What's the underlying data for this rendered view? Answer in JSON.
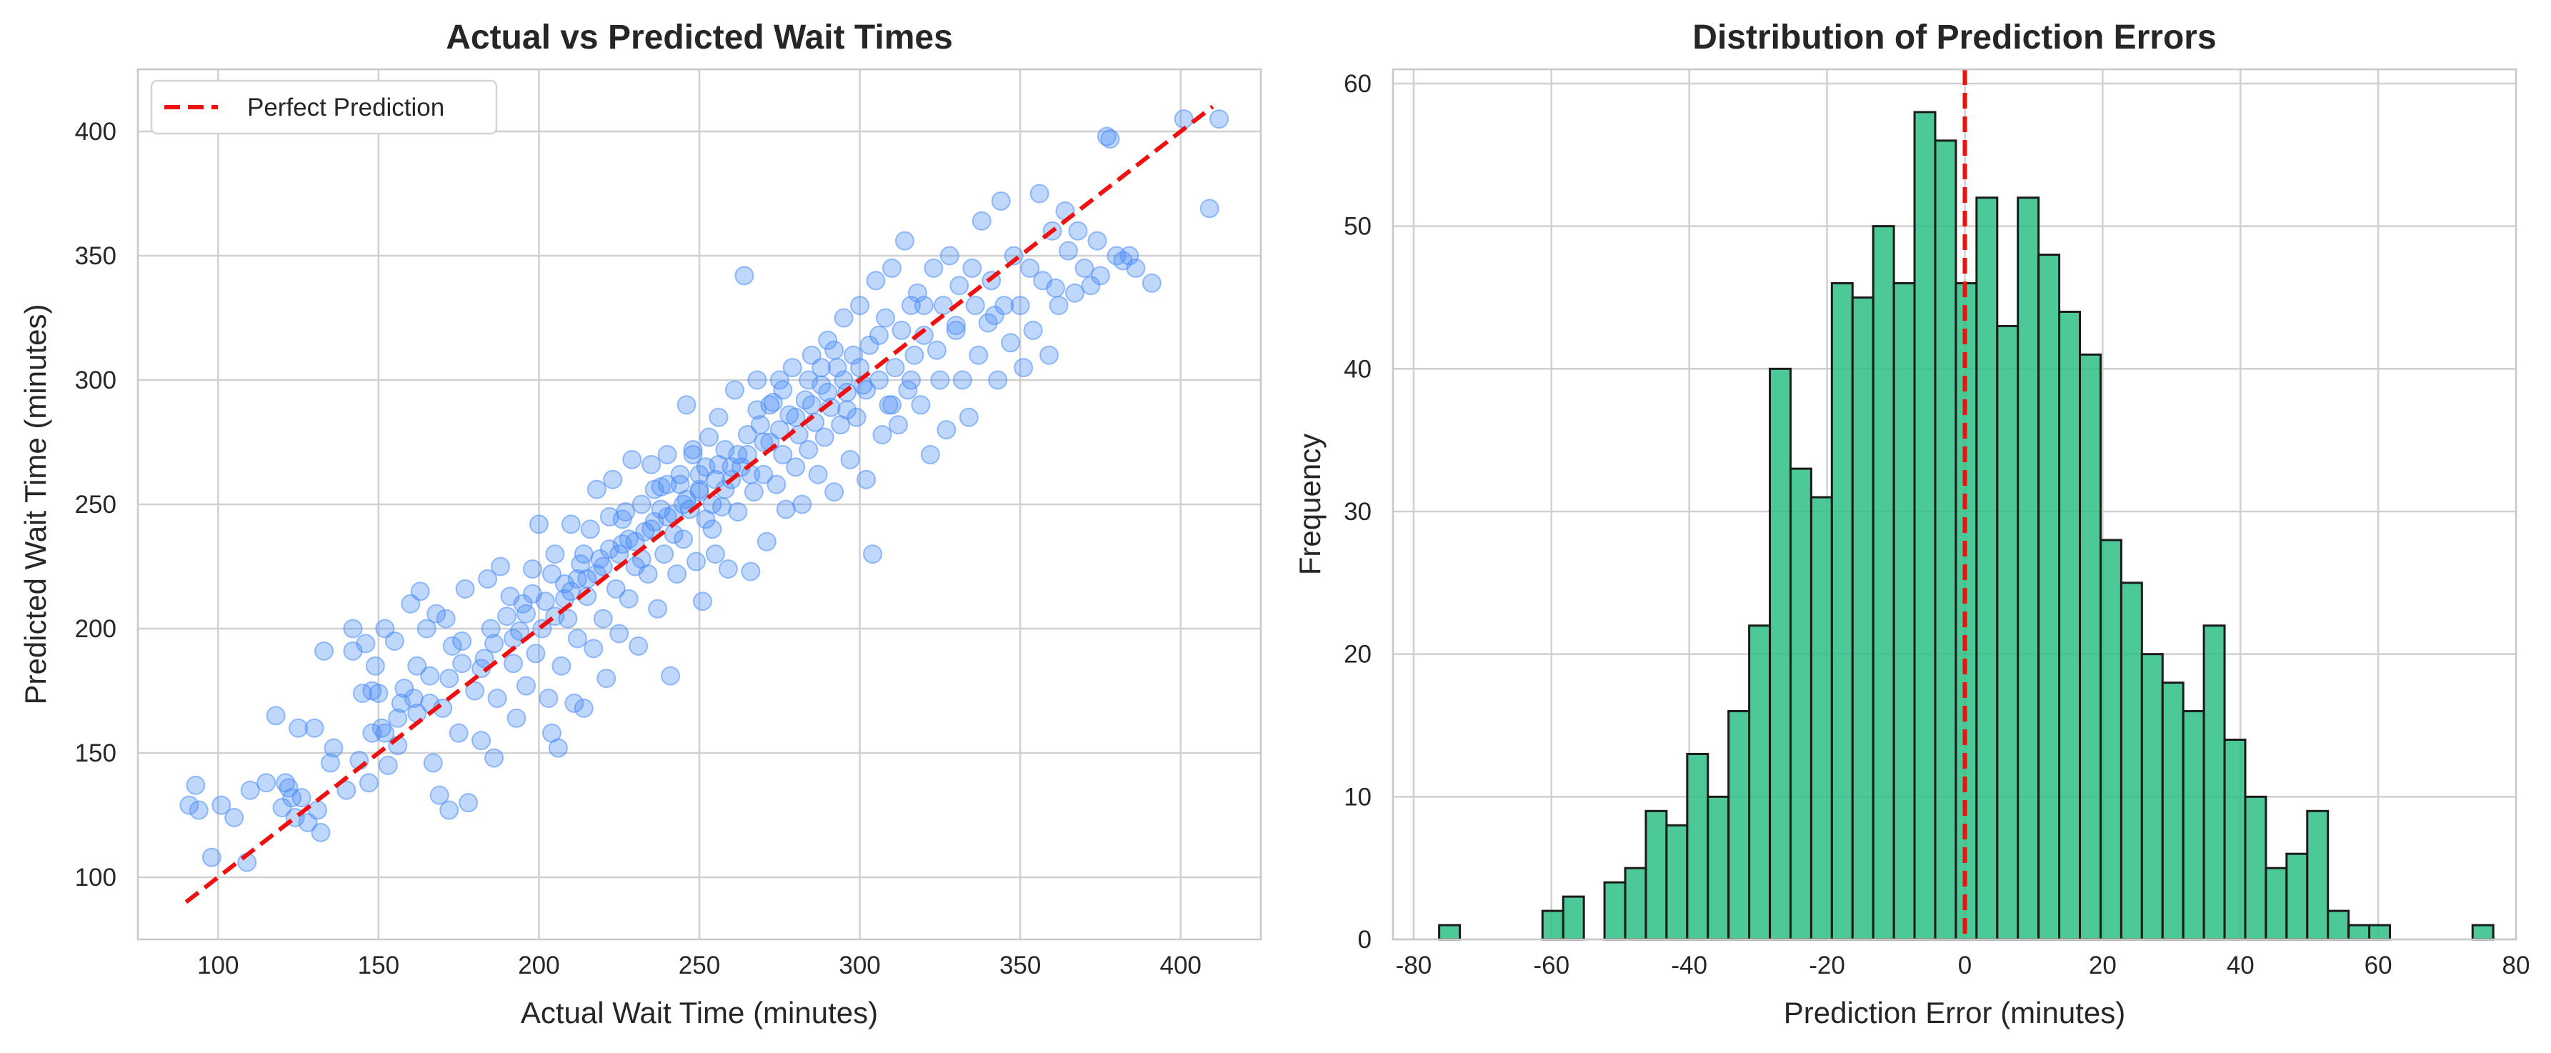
{
  "colors": {
    "scatter": "#4a8cf7",
    "hist_fill": "#2dbf85",
    "hist_edge": "#1b1b1b",
    "reference_line": "#ee1111",
    "grid": "#d0d0d0",
    "spine": "#c8c8c8"
  },
  "chart_data": [
    {
      "type": "scatter",
      "title": "Actual vs Predicted Wait Times",
      "xlabel": "Actual Wait Time (minutes)",
      "ylabel": "Predicted Wait Time (minutes)",
      "xlim": [
        75,
        425
      ],
      "ylim": [
        75,
        425
      ],
      "xticks": [
        100,
        150,
        200,
        250,
        300,
        350,
        400
      ],
      "yticks": [
        100,
        150,
        200,
        250,
        300,
        350,
        400
      ],
      "grid": true,
      "legend_position": "top-left",
      "reference_line": {
        "name": "Perfect Prediction",
        "x": [
          90,
          410
        ],
        "y": [
          90,
          410
        ],
        "style": "dashed"
      },
      "points": [
        [
          91,
          129
        ],
        [
          93,
          137
        ],
        [
          94,
          127
        ],
        [
          98,
          108
        ],
        [
          101,
          129
        ],
        [
          105,
          124
        ],
        [
          109,
          106
        ],
        [
          110,
          135
        ],
        [
          115,
          138
        ],
        [
          118,
          165
        ],
        [
          120,
          128
        ],
        [
          121,
          138
        ],
        [
          122,
          136
        ],
        [
          123,
          132
        ],
        [
          124,
          124
        ],
        [
          125,
          160
        ],
        [
          126,
          132
        ],
        [
          128,
          122
        ],
        [
          130,
          160
        ],
        [
          131,
          127
        ],
        [
          132,
          118
        ],
        [
          133,
          191
        ],
        [
          135,
          146
        ],
        [
          136,
          152
        ],
        [
          140,
          135
        ],
        [
          142,
          191
        ],
        [
          142,
          200
        ],
        [
          144,
          147
        ],
        [
          145,
          174
        ],
        [
          146,
          194
        ],
        [
          147,
          138
        ],
        [
          148,
          158
        ],
        [
          148,
          175
        ],
        [
          149,
          185
        ],
        [
          150,
          174
        ],
        [
          151,
          160
        ],
        [
          152,
          200
        ],
        [
          153,
          145
        ],
        [
          155,
          195
        ],
        [
          156,
          153
        ],
        [
          157,
          170
        ],
        [
          158,
          176
        ],
        [
          160,
          210
        ],
        [
          161,
          172
        ],
        [
          162,
          185
        ],
        [
          163,
          215
        ],
        [
          165,
          200
        ],
        [
          166,
          181
        ],
        [
          167,
          146
        ],
        [
          168,
          206
        ],
        [
          169,
          133
        ],
        [
          170,
          168
        ],
        [
          171,
          204
        ],
        [
          172,
          127
        ],
        [
          173,
          193
        ],
        [
          175,
          158
        ],
        [
          176,
          195
        ],
        [
          177,
          216
        ],
        [
          178,
          130
        ],
        [
          180,
          175
        ],
        [
          182,
          155
        ],
        [
          183,
          188
        ],
        [
          184,
          220
        ],
        [
          185,
          200
        ],
        [
          186,
          148
        ],
        [
          187,
          172
        ],
        [
          188,
          225
        ],
        [
          190,
          205
        ],
        [
          191,
          213
        ],
        [
          192,
          186
        ],
        [
          193,
          164
        ],
        [
          194,
          199
        ],
        [
          195,
          210
        ],
        [
          196,
          177
        ],
        [
          198,
          224
        ],
        [
          199,
          190
        ],
        [
          200,
          242
        ],
        [
          201,
          200
        ],
        [
          202,
          211
        ],
        [
          203,
          172
        ],
        [
          204,
          158
        ],
        [
          205,
          230
        ],
        [
          206,
          152
        ],
        [
          207,
          185
        ],
        [
          208,
          218
        ],
        [
          209,
          204
        ],
        [
          210,
          242
        ],
        [
          211,
          170
        ],
        [
          212,
          196
        ],
        [
          213,
          226
        ],
        [
          214,
          168
        ],
        [
          215,
          213
        ],
        [
          216,
          240
        ],
        [
          217,
          192
        ],
        [
          218,
          256
        ],
        [
          219,
          228
        ],
        [
          220,
          204
        ],
        [
          221,
          180
        ],
        [
          222,
          245
        ],
        [
          223,
          260
        ],
        [
          224,
          216
        ],
        [
          225,
          198
        ],
        [
          226,
          234
        ],
        [
          227,
          247
        ],
        [
          228,
          212
        ],
        [
          229,
          268
        ],
        [
          230,
          225
        ],
        [
          231,
          193
        ],
        [
          232,
          250
        ],
        [
          233,
          239
        ],
        [
          234,
          222
        ],
        [
          235,
          266
        ],
        [
          236,
          243
        ],
        [
          237,
          208
        ],
        [
          238,
          257
        ],
        [
          239,
          230
        ],
        [
          240,
          270
        ],
        [
          241,
          181
        ],
        [
          242,
          246
        ],
        [
          243,
          222
        ],
        [
          244,
          258
        ],
        [
          245,
          236
        ],
        [
          246,
          290
        ],
        [
          247,
          248
        ],
        [
          248,
          270
        ],
        [
          249,
          227
        ],
        [
          250,
          256
        ],
        [
          251,
          211
        ],
        [
          252,
          265
        ],
        [
          253,
          277
        ],
        [
          254,
          240
        ],
        [
          255,
          230
        ],
        [
          256,
          285
        ],
        [
          257,
          249
        ],
        [
          258,
          272
        ],
        [
          259,
          224
        ],
        [
          260,
          260
        ],
        [
          261,
          296
        ],
        [
          262,
          247
        ],
        [
          263,
          265
        ],
        [
          264,
          342
        ],
        [
          265,
          278
        ],
        [
          266,
          223
        ],
        [
          267,
          255
        ],
        [
          268,
          300
        ],
        [
          269,
          282
        ],
        [
          270,
          262
        ],
        [
          271,
          235
        ],
        [
          272,
          275
        ],
        [
          273,
          291
        ],
        [
          274,
          258
        ],
        [
          275,
          300
        ],
        [
          276,
          270
        ],
        [
          277,
          248
        ],
        [
          278,
          286
        ],
        [
          279,
          305
        ],
        [
          280,
          265
        ],
        [
          281,
          278
        ],
        [
          282,
          250
        ],
        [
          283,
          292
        ],
        [
          284,
          272
        ],
        [
          285,
          310
        ],
        [
          286,
          283
        ],
        [
          287,
          262
        ],
        [
          288,
          298
        ],
        [
          289,
          277
        ],
        [
          290,
          316
        ],
        [
          291,
          289
        ],
        [
          292,
          255
        ],
        [
          293,
          305
        ],
        [
          294,
          282
        ],
        [
          295,
          325
        ],
        [
          296,
          295
        ],
        [
          297,
          268
        ],
        [
          298,
          310
        ],
        [
          299,
          285
        ],
        [
          300,
          330
        ],
        [
          301,
          298
        ],
        [
          302,
          260
        ],
        [
          303,
          314
        ],
        [
          304,
          230
        ],
        [
          305,
          340
        ],
        [
          306,
          300
        ],
        [
          307,
          278
        ],
        [
          308,
          325
        ],
        [
          309,
          290
        ],
        [
          310,
          345
        ],
        [
          311,
          305
        ],
        [
          312,
          282
        ],
        [
          313,
          320
        ],
        [
          314,
          356
        ],
        [
          315,
          296
        ],
        [
          316,
          330
        ],
        [
          317,
          310
        ],
        [
          318,
          335
        ],
        [
          319,
          290
        ],
        [
          320,
          318
        ],
        [
          322,
          270
        ],
        [
          323,
          345
        ],
        [
          325,
          300
        ],
        [
          326,
          330
        ],
        [
          327,
          280
        ],
        [
          328,
          350
        ],
        [
          330,
          320
        ],
        [
          331,
          338
        ],
        [
          332,
          300
        ],
        [
          334,
          285
        ],
        [
          335,
          345
        ],
        [
          337,
          310
        ],
        [
          338,
          364
        ],
        [
          340,
          323
        ],
        [
          341,
          340
        ],
        [
          343,
          300
        ],
        [
          344,
          372
        ],
        [
          345,
          330
        ],
        [
          347,
          315
        ],
        [
          348,
          350
        ],
        [
          350,
          330
        ],
        [
          351,
          305
        ],
        [
          353,
          345
        ],
        [
          354,
          320
        ],
        [
          356,
          375
        ],
        [
          357,
          340
        ],
        [
          359,
          310
        ],
        [
          360,
          360
        ],
        [
          361,
          337
        ],
        [
          362,
          330
        ],
        [
          364,
          368
        ],
        [
          365,
          352
        ],
        [
          367,
          335
        ],
        [
          368,
          360
        ],
        [
          370,
          345
        ],
        [
          372,
          338
        ],
        [
          374,
          356
        ],
        [
          375,
          342
        ],
        [
          377,
          398
        ],
        [
          378,
          397
        ],
        [
          380,
          350
        ],
        [
          382,
          348
        ],
        [
          384,
          350
        ],
        [
          386,
          345
        ],
        [
          391,
          339
        ],
        [
          401,
          405
        ],
        [
          409,
          369
        ],
        [
          412,
          405
        ],
        [
          205,
          205
        ],
        [
          210,
          215
        ],
        [
          215,
          220
        ],
        [
          220,
          225
        ],
        [
          225,
          230
        ],
        [
          230,
          235
        ],
        [
          235,
          240
        ],
        [
          240,
          245
        ],
        [
          245,
          250
        ],
        [
          250,
          255
        ],
        [
          255,
          260
        ],
        [
          260,
          265
        ],
        [
          265,
          270
        ],
        [
          270,
          275
        ],
        [
          275,
          280
        ],
        [
          280,
          285
        ],
        [
          285,
          290
        ],
        [
          290,
          295
        ],
        [
          295,
          300
        ],
        [
          300,
          305
        ],
        [
          238,
          248
        ],
        [
          242,
          238
        ],
        [
          246,
          252
        ],
        [
          250,
          262
        ],
        [
          254,
          250
        ],
        [
          258,
          256
        ],
        [
          262,
          270
        ],
        [
          266,
          262
        ],
        [
          228,
          236
        ],
        [
          232,
          228
        ],
        [
          222,
          232
        ],
        [
          218,
          222
        ],
        [
          212,
          220
        ],
        [
          208,
          212
        ],
        [
          196,
          206
        ],
        [
          192,
          196
        ],
        [
          186,
          194
        ],
        [
          182,
          184
        ],
        [
          176,
          186
        ],
        [
          172,
          180
        ],
        [
          166,
          170
        ],
        [
          162,
          166
        ],
        [
          156,
          164
        ],
        [
          152,
          158
        ],
        [
          248,
          272
        ],
        [
          252,
          244
        ],
        [
          256,
          266
        ],
        [
          244,
          262
        ],
        [
          236,
          256
        ],
        [
          240,
          258
        ],
        [
          226,
          244
        ],
        [
          214,
          230
        ],
        [
          204,
          222
        ],
        [
          198,
          214
        ],
        [
          268,
          288
        ],
        [
          272,
          290
        ],
        [
          276,
          296
        ],
        [
          284,
          300
        ],
        [
          288,
          305
        ],
        [
          292,
          312
        ],
        [
          296,
          288
        ],
        [
          302,
          296
        ],
        [
          306,
          318
        ],
        [
          310,
          290
        ],
        [
          316,
          300
        ],
        [
          320,
          330
        ],
        [
          324,
          312
        ],
        [
          330,
          322
        ],
        [
          336,
          330
        ],
        [
          342,
          326
        ]
      ]
    },
    {
      "type": "histogram",
      "title": "Distribution of Prediction Errors",
      "xlabel": "Prediction Error (minutes)",
      "ylabel": "Frequency",
      "xlim": [
        -83,
        80
      ],
      "ylim": [
        0,
        61
      ],
      "xticks": [
        -80,
        -60,
        -40,
        -20,
        0,
        20,
        40,
        60,
        80
      ],
      "yticks": [
        0,
        10,
        20,
        30,
        40,
        50,
        60
      ],
      "grid": true,
      "reference_line": {
        "x": 0,
        "style": "dashed"
      },
      "bin_start": -76.3,
      "bin_width": 3.0,
      "counts": [
        1,
        0,
        0,
        0,
        0,
        2,
        3,
        0,
        4,
        5,
        9,
        8,
        13,
        10,
        16,
        22,
        40,
        33,
        31,
        46,
        45,
        50,
        46,
        58,
        56,
        46,
        52,
        43,
        52,
        48,
        44,
        41,
        28,
        25,
        20,
        18,
        16,
        22,
        14,
        10,
        5,
        6,
        9,
        2,
        1,
        1,
        0,
        0,
        0,
        0,
        1
      ]
    }
  ]
}
